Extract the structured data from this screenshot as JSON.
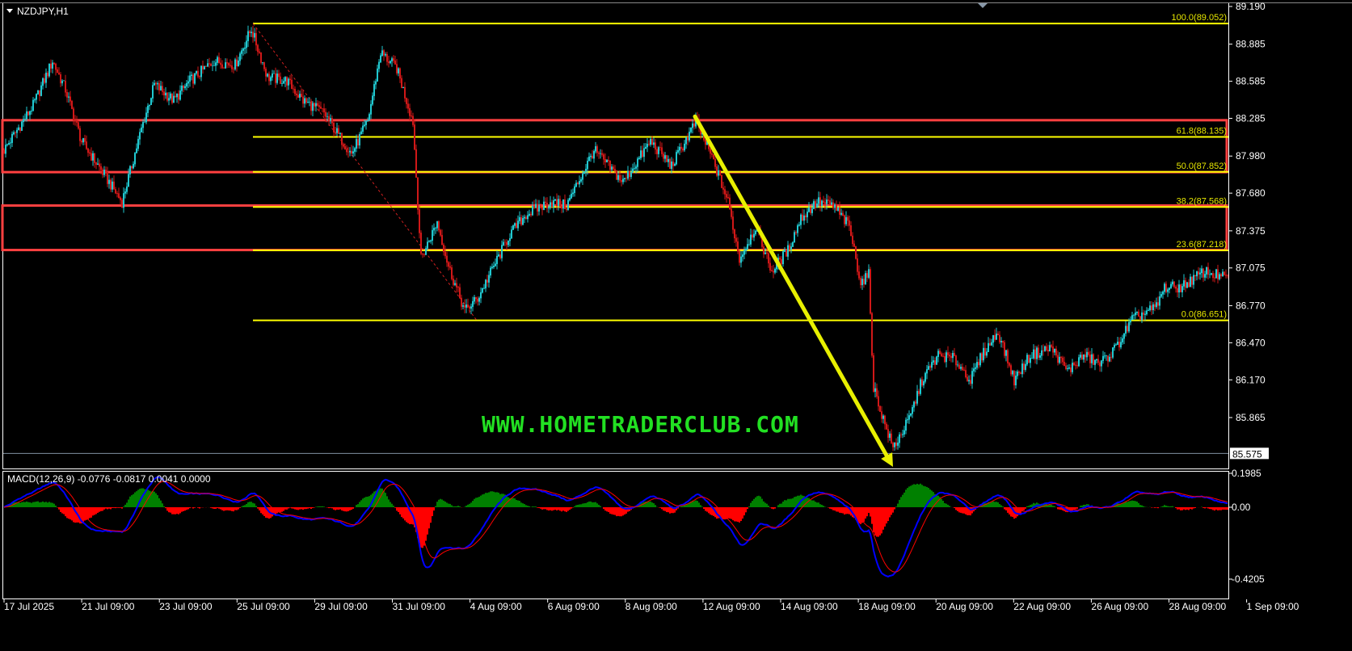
{
  "header": {
    "symbol_label": "NZDJPY,H1",
    "menu_icon": "triangle-down-icon"
  },
  "watermark": "WWW.HOMETRADERCLUB.COM",
  "colors": {
    "background": "#000000",
    "bull": "#20c8d0",
    "bear": "#d01818",
    "fib": "#ffff00",
    "zone": "#ff4040",
    "arrow": "#e8f000",
    "macd_main": "#0000ff",
    "macd_signal": "#ff0000",
    "hist_pos": "#008000",
    "hist_neg": "#ff0000",
    "watermark": "#22e022"
  },
  "chart_data": [
    {
      "type": "candlestick",
      "title": "NZDJPY,H1",
      "price_axis": {
        "labels": [
          "89.190",
          "88.885",
          "88.585",
          "88.285",
          "87.980",
          "87.680",
          "87.375",
          "87.075",
          "86.770",
          "86.470",
          "86.170",
          "85.865"
        ],
        "current_price": "85.575",
        "ylim": [
          85.5,
          89.2
        ]
      },
      "time_axis": {
        "labels": [
          "17 Jul 2025",
          "21 Jul 09:00",
          "23 Jul 09:00",
          "25 Jul 09:00",
          "29 Jul 09:00",
          "31 Jul 09:00",
          "4 Aug 09:00",
          "6 Aug 09:00",
          "8 Aug 09:00",
          "12 Aug 09:00",
          "14 Aug 09:00",
          "18 Aug 09:00",
          "20 Aug 09:00",
          "22 Aug 09:00",
          "26 Aug 09:00",
          "28 Aug 09:00",
          "1 Sep 09:00"
        ]
      },
      "price_path": [
        [
          0,
          88.03
        ],
        [
          18,
          88.39
        ],
        [
          30,
          88.75
        ],
        [
          38,
          88.52
        ],
        [
          48,
          88.1
        ],
        [
          60,
          87.87
        ],
        [
          73,
          87.61
        ],
        [
          85,
          88.2
        ],
        [
          93,
          88.56
        ],
        [
          105,
          88.43
        ],
        [
          115,
          88.59
        ],
        [
          130,
          88.75
        ],
        [
          143,
          88.72
        ],
        [
          153,
          89.01
        ],
        [
          163,
          88.62
        ],
        [
          175,
          88.59
        ],
        [
          185,
          88.43
        ],
        [
          198,
          88.33
        ],
        [
          208,
          88.13
        ],
        [
          215,
          88.0
        ],
        [
          225,
          88.26
        ],
        [
          233,
          88.82
        ],
        [
          243,
          88.69
        ],
        [
          253,
          88.26
        ],
        [
          258,
          87.15
        ],
        [
          268,
          87.45
        ],
        [
          275,
          87.09
        ],
        [
          285,
          86.73
        ],
        [
          293,
          86.83
        ],
        [
          303,
          87.09
        ],
        [
          313,
          87.35
        ],
        [
          323,
          87.51
        ],
        [
          338,
          87.61
        ],
        [
          348,
          87.58
        ],
        [
          365,
          88.03
        ],
        [
          383,
          87.77
        ],
        [
          400,
          88.1
        ],
        [
          413,
          87.9
        ],
        [
          428,
          88.26
        ],
        [
          438,
          87.97
        ],
        [
          448,
          87.61
        ],
        [
          455,
          87.15
        ],
        [
          465,
          87.41
        ],
        [
          475,
          87.05
        ],
        [
          485,
          87.22
        ],
        [
          493,
          87.48
        ],
        [
          503,
          87.61
        ],
        [
          513,
          87.58
        ],
        [
          523,
          87.41
        ],
        [
          530,
          86.96
        ],
        [
          535,
          87.02
        ],
        [
          538,
          86.11
        ],
        [
          545,
          85.81
        ],
        [
          550,
          85.62
        ],
        [
          560,
          85.85
        ],
        [
          568,
          86.17
        ],
        [
          578,
          86.37
        ],
        [
          588,
          86.34
        ],
        [
          598,
          86.17
        ],
        [
          605,
          86.37
        ],
        [
          615,
          86.56
        ],
        [
          625,
          86.17
        ],
        [
          635,
          86.37
        ],
        [
          648,
          86.43
        ],
        [
          658,
          86.24
        ],
        [
          668,
          86.37
        ],
        [
          678,
          86.3
        ],
        [
          688,
          86.43
        ],
        [
          698,
          86.66
        ],
        [
          713,
          86.76
        ],
        [
          718,
          86.92
        ],
        [
          728,
          86.92
        ],
        [
          743,
          87.05
        ],
        [
          757,
          86.99
        ]
      ],
      "fibonacci": [
        {
          "label": "100.0(89.052)",
          "price": 89.052
        },
        {
          "label": "61.8(88.135)",
          "price": 88.135
        },
        {
          "label": "50.0(87.852)",
          "price": 87.852
        },
        {
          "label": "38.2(87.568)",
          "price": 87.568
        },
        {
          "label": "23.6(87.218)",
          "price": 87.218
        },
        {
          "label": "0.0(86.651)",
          "price": 86.651
        }
      ],
      "zones": [
        {
          "top": 88.27,
          "bottom": 87.85
        },
        {
          "top": 87.58,
          "bottom": 87.22
        }
      ],
      "trend_arrow": {
        "from_price": 88.3,
        "to_price": 85.5,
        "direction": "down"
      }
    },
    {
      "type": "line",
      "title": "MACD(12,26,9) -0.0776 -0.0817 0.0041 0.0000",
      "axis_labels": [
        "0.1985",
        "0.00",
        "-0.4205"
      ],
      "ylim": [
        -0.4205,
        0.1985
      ],
      "params": [
        12,
        26,
        9
      ]
    }
  ]
}
